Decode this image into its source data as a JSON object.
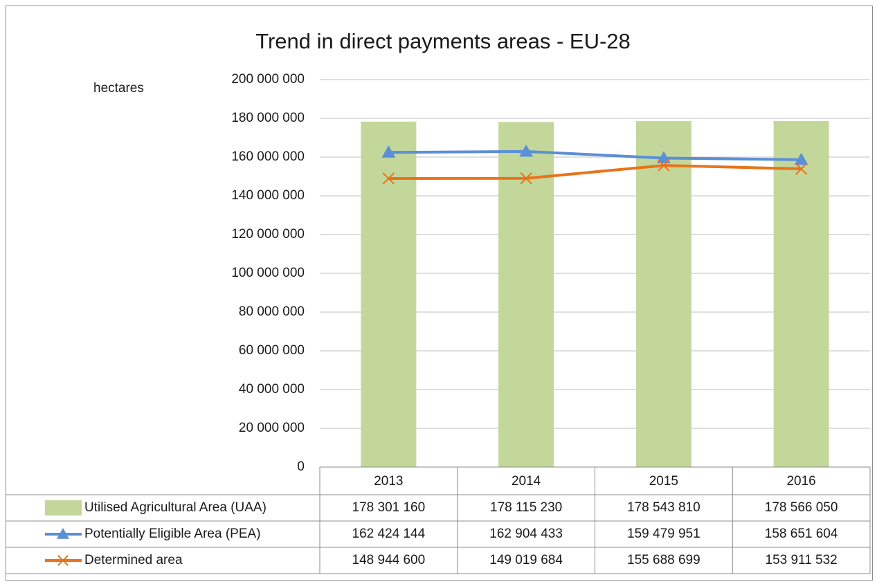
{
  "chart_data": {
    "type": "bar",
    "title": "Trend in direct payments areas - EU-28",
    "y_label": "hectares",
    "categories": [
      "2013",
      "2014",
      "2015",
      "2016"
    ],
    "series": [
      {
        "name": "Utilised Agricultural Area (UAA)",
        "type": "bar",
        "color": "#c4d79b",
        "values": [
          178301160,
          178115230,
          178543810,
          178566050
        ],
        "value_labels": [
          "178 301 160",
          "178 115 230",
          "178 543 810",
          "178 566 050"
        ]
      },
      {
        "name": "Potentially Eligible Area (PEA)",
        "type": "line",
        "marker": "triangle",
        "color": "#5b8fd6",
        "values": [
          162424144,
          162904433,
          159479951,
          158651604
        ],
        "value_labels": [
          "162 424 144",
          "162 904 433",
          "159 479 951",
          "158 651 604"
        ]
      },
      {
        "name": "Determined area",
        "type": "line",
        "marker": "x",
        "color": "#e8731a",
        "values": [
          148944600,
          149019684,
          155688699,
          153911532
        ],
        "value_labels": [
          "148 944 600",
          "149 019 684",
          "155 688 699",
          "153 911 532"
        ]
      }
    ],
    "ylim": [
      0,
      200000000
    ],
    "yticks": [
      0,
      {
        "value": 20000000,
        "label": "20 000 000"
      },
      {
        "value": 40000000,
        "label": "40 000 000"
      },
      {
        "value": 60000000,
        "label": "60 000 000"
      },
      {
        "value": 80000000,
        "label": "80 000 000"
      },
      {
        "value": 100000000,
        "label": "100 000 000"
      },
      {
        "value": 120000000,
        "label": "120 000 000"
      },
      {
        "value": 140000000,
        "label": "140 000 000"
      },
      {
        "value": 160000000,
        "label": "160 000 000"
      },
      {
        "value": 180000000,
        "label": "180 000 000"
      },
      {
        "value": 200000000,
        "label": "200 000 000"
      }
    ],
    "grid": true
  }
}
